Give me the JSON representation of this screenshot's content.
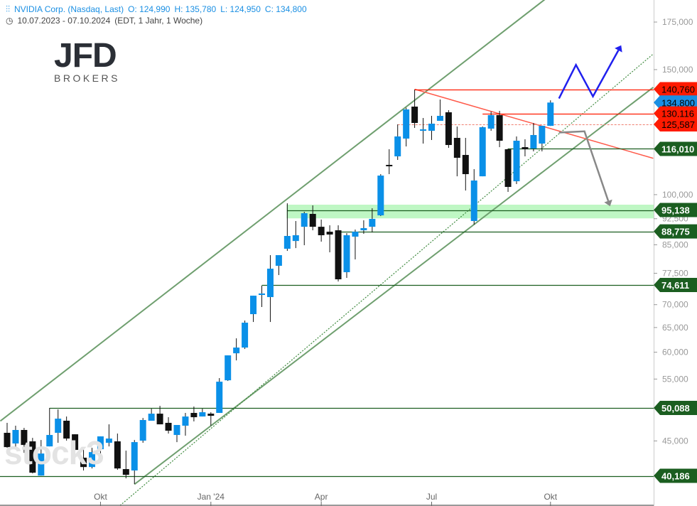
{
  "header": {
    "instrument": "NVIDIA Corp. (Nasdaq, Last)",
    "open": "O: 124,990",
    "high": "H: 135,780",
    "low": "L: 124,950",
    "close": "C: 134,800",
    "range": "10.07.2023 - 07.10.2024",
    "settings": "(EDT, 1 Jahr, 1 Woche)"
  },
  "logo": {
    "main": "JFD",
    "sub": "BROKERS"
  },
  "watermark": "stock3",
  "colors": {
    "up": "#0a90e8",
    "down": "#111111",
    "resistance": "#ff1a00",
    "support": "#1b5e20",
    "channel": "#6f9f6f",
    "blue_arrow": "#2020ee",
    "gray_arrow": "#888888",
    "zone": "#bff7c4"
  },
  "chart_data": {
    "type": "candlestick",
    "title": "NVIDIA Corp. (Nasdaq, Last)",
    "scale": "log",
    "ylim": [
      37000,
      190000
    ],
    "y_ticks": [
      175000,
      150000,
      100000,
      92500,
      85000,
      77500,
      70000,
      65000,
      60000,
      55000,
      45000
    ],
    "y_tick_labels": [
      "175,000",
      "150,000",
      "100,000",
      "92,500",
      "85,000",
      "77,500",
      "70,000",
      "65,000",
      "60,000",
      "55,000",
      "45,000"
    ],
    "x_ticks": [
      {
        "index": 11,
        "label": "Okt"
      },
      {
        "index": 24,
        "label": "Jan '24"
      },
      {
        "index": 37,
        "label": "Apr"
      },
      {
        "index": 50,
        "label": "Jul"
      },
      {
        "index": 64,
        "label": "Okt"
      }
    ],
    "candles_ohlc": [
      [
        46200,
        47720,
        44010,
        44110
      ],
      [
        44630,
        47280,
        43910,
        46630
      ],
      [
        46630,
        46950,
        43300,
        44420
      ],
      [
        44940,
        45450,
        40510,
        40600
      ],
      [
        40220,
        45140,
        40220,
        43200
      ],
      [
        44210,
        50080,
        44210,
        45880
      ],
      [
        46200,
        49840,
        44730,
        48370
      ],
      [
        48050,
        48710,
        45040,
        45350
      ],
      [
        45980,
        45980,
        43710,
        43710
      ],
      [
        42620,
        44110,
        40890,
        41350
      ],
      [
        41350,
        44010,
        41160,
        43400
      ],
      [
        43810,
        45670,
        43110,
        45670
      ],
      [
        44730,
        47490,
        44210,
        45350
      ],
      [
        44940,
        46090,
        40980,
        41160
      ],
      [
        41075,
        43610,
        39860,
        40320
      ],
      [
        40890,
        45140,
        39130,
        44830
      ],
      [
        45040,
        48480,
        44730,
        48160
      ],
      [
        48050,
        49960,
        48050,
        49160
      ],
      [
        49160,
        50420,
        47490,
        47490
      ],
      [
        47720,
        48600,
        46090,
        46520
      ],
      [
        45880,
        47390,
        44830,
        47390
      ],
      [
        47280,
        49280,
        45770,
        48710
      ],
      [
        49280,
        50310,
        47940,
        48600
      ],
      [
        48710,
        49960,
        48710,
        49390
      ],
      [
        49160,
        49390,
        47280,
        48820
      ],
      [
        49280,
        55170,
        49280,
        54530
      ],
      [
        54780,
        59390,
        54660,
        59390
      ],
      [
        59790,
        62760,
        58430,
        60910
      ],
      [
        60910,
        66490,
        60630,
        66030
      ],
      [
        67880,
        72070,
        66180,
        72070
      ],
      [
        72240,
        74440,
        69470,
        72580
      ],
      [
        71740,
        82190,
        66180,
        78660
      ],
      [
        79400,
        82190,
        77050,
        82190
      ],
      [
        83910,
        97240,
        83330,
        87470
      ],
      [
        86050,
        91810,
        84090,
        87670
      ],
      [
        90110,
        94590,
        84880,
        94160
      ],
      [
        93950,
        96580,
        89090,
        90110
      ],
      [
        90110,
        92230,
        85870,
        87670
      ],
      [
        88680,
        90540,
        82950,
        87870
      ],
      [
        89090,
        90540,
        75470,
        76000
      ],
      [
        77770,
        88270,
        76350,
        87670
      ],
      [
        87270,
        89300,
        81060,
        88680
      ],
      [
        89090,
        92020,
        88070,
        89720
      ],
      [
        90110,
        95690,
        88480,
        92440
      ],
      [
        93510,
        106870,
        93300,
        106380
      ],
      [
        110140,
        115860,
        106880,
        109630
      ],
      [
        113220,
        125590,
        111920,
        120770
      ],
      [
        119930,
        132530,
        116920,
        131820
      ],
      [
        133040,
        140590,
        124150,
        126170
      ],
      [
        123010,
        128220,
        118010,
        123580
      ],
      [
        123010,
        129110,
        119380,
        125880
      ],
      [
        127050,
        136140,
        127050,
        129110
      ],
      [
        130610,
        131510,
        116380,
        117470
      ],
      [
        120210,
        124720,
        106130,
        112700
      ],
      [
        113740,
        120210,
        101350,
        106880
      ],
      [
        91810,
        108620,
        90750,
        104690
      ],
      [
        106130,
        124730,
        106130,
        124440
      ],
      [
        123870,
        130910,
        123010,
        129410
      ],
      [
        129410,
        131210,
        116650,
        119110
      ],
      [
        115860,
        116130,
        100900,
        102540
      ],
      [
        104440,
        120770,
        103490,
        119110
      ],
      [
        116650,
        119660,
        113220,
        115860
      ],
      [
        116130,
        126170,
        115060,
        121330
      ],
      [
        118010,
        125000,
        115060,
        125000
      ],
      [
        124990,
        135780,
        124950,
        134800
      ]
    ],
    "levels": [
      {
        "value": 140760,
        "label": "140,760",
        "kind": "resistance",
        "from_index": 48
      },
      {
        "value": 134800,
        "label": "134,800",
        "kind": "last",
        "from_index": 64
      },
      {
        "value": 130116,
        "label": "130,116",
        "kind": "resistance",
        "from_index": 56
      },
      {
        "value": 125587,
        "label": "125,587",
        "kind": "resistance-dashed",
        "from_index": 46
      },
      {
        "value": 116010,
        "label": "116,010",
        "kind": "support",
        "from_index": 59
      },
      {
        "value": 95138,
        "label": "95,138",
        "kind": "support-zone",
        "from_index": 33
      },
      {
        "value": 88775,
        "label": "88,775",
        "kind": "support",
        "from_index": 39
      },
      {
        "value": 74611,
        "label": "74,611",
        "kind": "support",
        "from_index": 30
      },
      {
        "value": 50088,
        "label": "50,088",
        "kind": "support",
        "from_index": 5
      },
      {
        "value": 40186,
        "label": "40,186",
        "kind": "support",
        "from_index": -1
      }
    ],
    "zone": {
      "low": 92600,
      "high": 96800
    },
    "trendlines": [
      {
        "kind": "channel-upper",
        "p1": [
          -0.8,
          48000
        ],
        "p2": [
          64,
          191000
        ]
      },
      {
        "kind": "channel-lower",
        "p1": [
          15,
          39100
        ],
        "p2": [
          76.1,
          141600
        ]
      },
      {
        "kind": "dotted",
        "p1": [
          13.3,
          36500
        ],
        "p2": [
          76.1,
          157800
        ]
      },
      {
        "kind": "resistance-falling",
        "p1": [
          48,
          140760
        ],
        "p2": [
          76.1,
          112500
        ]
      }
    ],
    "projections": [
      {
        "kind": "bullish",
        "points": [
          [
            65,
            136600
          ],
          [
            67,
            152300
          ],
          [
            69,
            137500
          ],
          [
            72,
            159700
          ]
        ]
      },
      {
        "kind": "bearish",
        "points": [
          [
            65,
            122300
          ],
          [
            68,
            122800
          ],
          [
            70.8,
            98000
          ]
        ]
      }
    ]
  }
}
